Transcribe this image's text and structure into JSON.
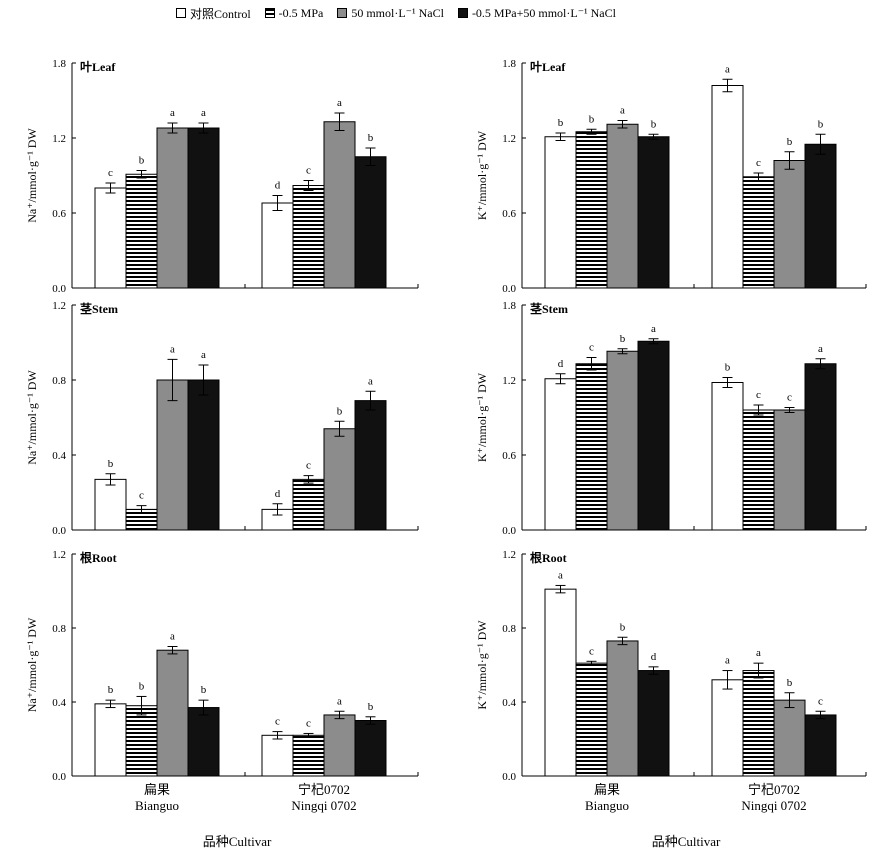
{
  "legend": [
    {
      "label": "对照Control",
      "fill": "#ffffff",
      "pattern": "none"
    },
    {
      "label": "-0.5 MPa",
      "fill": "#ffffff",
      "pattern": "hstripe"
    },
    {
      "label": "50 mmol·L⁻¹ NaCl",
      "fill": "#8c8c8c",
      "pattern": "none"
    },
    {
      "label": "-0.5 MPa+50 mmol·L⁻¹ NaCl",
      "fill": "#111111",
      "pattern": "none"
    }
  ],
  "xaxis": {
    "title": "品种Cultivar",
    "categories": [
      {
        "cn": "扁果",
        "en": "Bianguo"
      },
      {
        "cn": "宁杞0702",
        "en": "Ningqi 0702"
      }
    ]
  },
  "chart_data": [
    {
      "type": "bar",
      "panel_label": "叶Leaf",
      "ylabel": "Na⁺/mmol·g⁻¹ DW",
      "ylim": [
        0,
        1.8
      ],
      "yticks": [
        0.0,
        0.6,
        1.2,
        1.8
      ],
      "categories": [
        "Bianguo",
        "Ningqi 0702"
      ],
      "series": [
        {
          "name": "对照Control",
          "values": [
            0.8,
            0.68
          ],
          "errors": [
            0.04,
            0.06
          ],
          "letters": [
            "c",
            "d"
          ]
        },
        {
          "name": "-0.5 MPa",
          "values": [
            0.91,
            0.82
          ],
          "errors": [
            0.03,
            0.04
          ],
          "letters": [
            "b",
            "c"
          ]
        },
        {
          "name": "50 mmol·L⁻¹ NaCl",
          "values": [
            1.28,
            1.33
          ],
          "errors": [
            0.04,
            0.07
          ],
          "letters": [
            "a",
            "a"
          ]
        },
        {
          "name": "-0.5 MPa+50 mmol·L⁻¹ NaCl",
          "values": [
            1.28,
            1.05
          ],
          "errors": [
            0.04,
            0.07
          ],
          "letters": [
            "a",
            "b"
          ]
        }
      ]
    },
    {
      "type": "bar",
      "panel_label": "叶Leaf",
      "ylabel": "K⁺/mmol·g⁻¹ DW",
      "ylim": [
        0,
        1.8
      ],
      "yticks": [
        0.0,
        0.6,
        1.2,
        1.8
      ],
      "categories": [
        "Bianguo",
        "Ningqi 0702"
      ],
      "series": [
        {
          "name": "对照Control",
          "values": [
            1.21,
            1.62
          ],
          "errors": [
            0.03,
            0.05
          ],
          "letters": [
            "b",
            "a"
          ]
        },
        {
          "name": "-0.5 MPa",
          "values": [
            1.25,
            0.89
          ],
          "errors": [
            0.02,
            0.03
          ],
          "letters": [
            "b",
            "c"
          ]
        },
        {
          "name": "50 mmol·L⁻¹ NaCl",
          "values": [
            1.31,
            1.02
          ],
          "errors": [
            0.03,
            0.07
          ],
          "letters": [
            "a",
            "b"
          ]
        },
        {
          "name": "-0.5 MPa+50 mmol·L⁻¹ NaCl",
          "values": [
            1.21,
            1.15
          ],
          "errors": [
            0.02,
            0.08
          ],
          "letters": [
            "b",
            "b"
          ]
        }
      ]
    },
    {
      "type": "bar",
      "panel_label": "茎Stem",
      "ylabel": "Na⁺/mmol·g⁻¹ DW",
      "ylim": [
        0,
        1.2
      ],
      "yticks": [
        0.0,
        0.4,
        0.8,
        1.2
      ],
      "categories": [
        "Bianguo",
        "Ningqi 0702"
      ],
      "series": [
        {
          "name": "对照Control",
          "values": [
            0.27,
            0.11
          ],
          "errors": [
            0.03,
            0.03
          ],
          "letters": [
            "b",
            "d"
          ]
        },
        {
          "name": "-0.5 MPa",
          "values": [
            0.11,
            0.27
          ],
          "errors": [
            0.02,
            0.02
          ],
          "letters": [
            "c",
            "c"
          ]
        },
        {
          "name": "50 mmol·L⁻¹ NaCl",
          "values": [
            0.8,
            0.54
          ],
          "errors": [
            0.11,
            0.04
          ],
          "letters": [
            "a",
            "b"
          ]
        },
        {
          "name": "-0.5 MPa+50 mmol·L⁻¹ NaCl",
          "values": [
            0.8,
            0.69
          ],
          "errors": [
            0.08,
            0.05
          ],
          "letters": [
            "a",
            "a"
          ]
        }
      ]
    },
    {
      "type": "bar",
      "panel_label": "茎Stem",
      "ylabel": "K⁺/mmol·g⁻¹ DW",
      "ylim": [
        0,
        1.8
      ],
      "yticks": [
        0.0,
        0.6,
        1.2,
        1.8
      ],
      "categories": [
        "Bianguo",
        "Ningqi 0702"
      ],
      "series": [
        {
          "name": "对照Control",
          "values": [
            1.21,
            1.18
          ],
          "errors": [
            0.04,
            0.04
          ],
          "letters": [
            "d",
            "b"
          ]
        },
        {
          "name": "-0.5 MPa",
          "values": [
            1.33,
            0.96
          ],
          "errors": [
            0.05,
            0.04
          ],
          "letters": [
            "c",
            "c"
          ]
        },
        {
          "name": "50 mmol·L⁻¹ NaCl",
          "values": [
            1.43,
            0.96
          ],
          "errors": [
            0.02,
            0.02
          ],
          "letters": [
            "b",
            "c"
          ]
        },
        {
          "name": "-0.5 MPa+50 mmol·L⁻¹ NaCl",
          "values": [
            1.51,
            1.33
          ],
          "errors": [
            0.02,
            0.04
          ],
          "letters": [
            "a",
            "a"
          ]
        }
      ]
    },
    {
      "type": "bar",
      "panel_label": "根Root",
      "ylabel": "Na⁺/mmol·g⁻¹ DW",
      "ylim": [
        0,
        1.2
      ],
      "yticks": [
        0.0,
        0.4,
        0.8,
        1.2
      ],
      "categories": [
        "Bianguo",
        "Ningqi 0702"
      ],
      "series": [
        {
          "name": "对照Control",
          "values": [
            0.39,
            0.22
          ],
          "errors": [
            0.02,
            0.02
          ],
          "letters": [
            "b",
            "c"
          ]
        },
        {
          "name": "-0.5 MPa",
          "values": [
            0.38,
            0.22
          ],
          "errors": [
            0.05,
            0.01
          ],
          "letters": [
            "b",
            "c"
          ]
        },
        {
          "name": "50 mmol·L⁻¹ NaCl",
          "values": [
            0.68,
            0.33
          ],
          "errors": [
            0.02,
            0.02
          ],
          "letters": [
            "a",
            "a"
          ]
        },
        {
          "name": "-0.5 MPa+50 mmol·L⁻¹ NaCl",
          "values": [
            0.37,
            0.3
          ],
          "errors": [
            0.04,
            0.02
          ],
          "letters": [
            "b",
            "b"
          ]
        }
      ]
    },
    {
      "type": "bar",
      "panel_label": "根Root",
      "ylabel": "K⁺/mmol·g⁻¹ DW",
      "ylim": [
        0,
        1.2
      ],
      "yticks": [
        0.0,
        0.4,
        0.8,
        1.2
      ],
      "categories": [
        "Bianguo",
        "Ningqi 0702"
      ],
      "series": [
        {
          "name": "对照Control",
          "values": [
            1.01,
            0.52
          ],
          "errors": [
            0.02,
            0.05
          ],
          "letters": [
            "a",
            "a"
          ]
        },
        {
          "name": "-0.5 MPa",
          "values": [
            0.61,
            0.57
          ],
          "errors": [
            0.01,
            0.04
          ],
          "letters": [
            "c",
            "a"
          ]
        },
        {
          "name": "50 mmol·L⁻¹ NaCl",
          "values": [
            0.73,
            0.41
          ],
          "errors": [
            0.02,
            0.04
          ],
          "letters": [
            "b",
            "b"
          ]
        },
        {
          "name": "-0.5 MPa+50 mmol·L⁻¹ NaCl",
          "values": [
            0.57,
            0.33
          ],
          "errors": [
            0.02,
            0.02
          ],
          "letters": [
            "d",
            "c"
          ]
        }
      ]
    }
  ]
}
